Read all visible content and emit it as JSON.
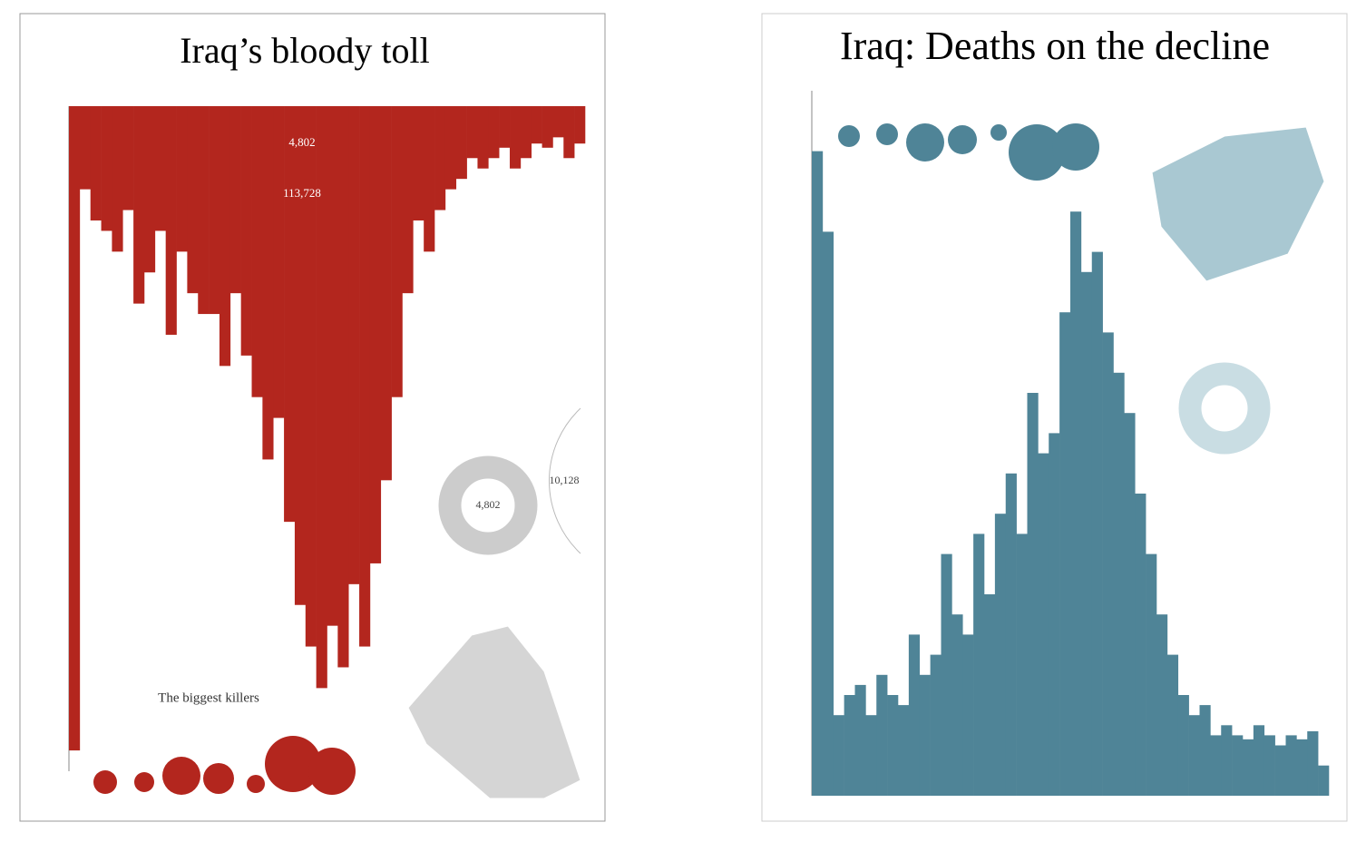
{
  "chart_data": [
    {
      "type": "bar",
      "title": "Iraq’s bloody toll",
      "color": "#b3261e",
      "y_inverted": true,
      "ylim": [
        0,
        3200
      ],
      "values": [
        3100,
        400,
        550,
        600,
        700,
        500,
        950,
        800,
        600,
        1100,
        700,
        900,
        1000,
        1000,
        1250,
        900,
        1200,
        1400,
        1700,
        1500,
        2000,
        2400,
        2600,
        2800,
        2500,
        2700,
        2300,
        2600,
        2200,
        1800,
        1400,
        900,
        550,
        700,
        500,
        400,
        350,
        250,
        300,
        250,
        200,
        300,
        250,
        180,
        200,
        150,
        250,
        180
      ],
      "annotations": [
        "4,802",
        "113,728",
        "4,802",
        "10,128",
        "The biggest killers"
      ]
    },
    {
      "type": "bar",
      "title": "Iraq: Deaths on the decline",
      "color": "#4f8497",
      "y_inverted": false,
      "ylim": [
        0,
        3500
      ],
      "values": [
        3200,
        2800,
        400,
        500,
        550,
        400,
        600,
        500,
        450,
        800,
        600,
        700,
        1200,
        900,
        800,
        1300,
        1000,
        1400,
        1600,
        1300,
        2000,
        1700,
        1800,
        2400,
        2900,
        2600,
        2700,
        2300,
        2100,
        1900,
        1500,
        1200,
        900,
        700,
        500,
        400,
        450,
        300,
        350,
        300,
        280,
        350,
        300,
        250,
        300,
        280,
        320,
        150
      ]
    }
  ]
}
